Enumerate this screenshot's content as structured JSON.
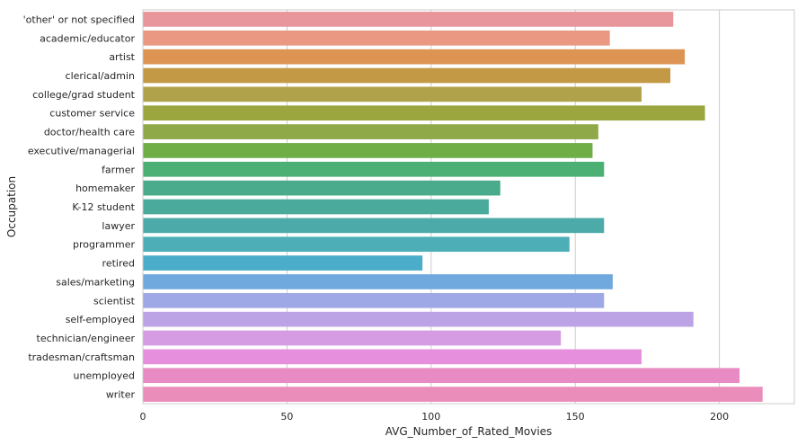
{
  "chart_data": {
    "type": "bar",
    "orientation": "horizontal",
    "xlabel": "AVG_Number_of_Rated_Movies",
    "ylabel": "Occupation",
    "xlim": [
      0,
      226
    ],
    "xticks": [
      0,
      50,
      100,
      150,
      200
    ],
    "grid": true,
    "categories": [
      "'other' or not specified",
      "academic/educator",
      "artist",
      "clerical/admin",
      "college/grad student",
      "customer service",
      "doctor/health care",
      "executive/managerial",
      "farmer",
      "homemaker",
      "K-12 student",
      "lawyer",
      "programmer",
      "retired",
      "sales/marketing",
      "scientist",
      "self-employed",
      "technician/engineer",
      "tradesman/craftsman",
      "unemployed",
      "writer"
    ],
    "values": [
      184,
      162,
      188,
      183,
      173,
      195,
      158,
      156,
      160,
      124,
      120,
      160,
      148,
      97,
      163,
      160,
      191,
      145,
      173,
      207,
      215
    ],
    "colors": [
      "#e8969c",
      "#eb9883",
      "#dd9453",
      "#c49945",
      "#b0a24a",
      "#9ba63f",
      "#8fa848",
      "#6fae47",
      "#4caf74",
      "#4aaa8c",
      "#4aaa9b",
      "#4caaa8",
      "#4daeb8",
      "#4cadca",
      "#6fa9dd",
      "#9ea8e6",
      "#bba3e6",
      "#d59be3",
      "#e68fdd",
      "#e88ac3",
      "#ea8dba"
    ]
  }
}
